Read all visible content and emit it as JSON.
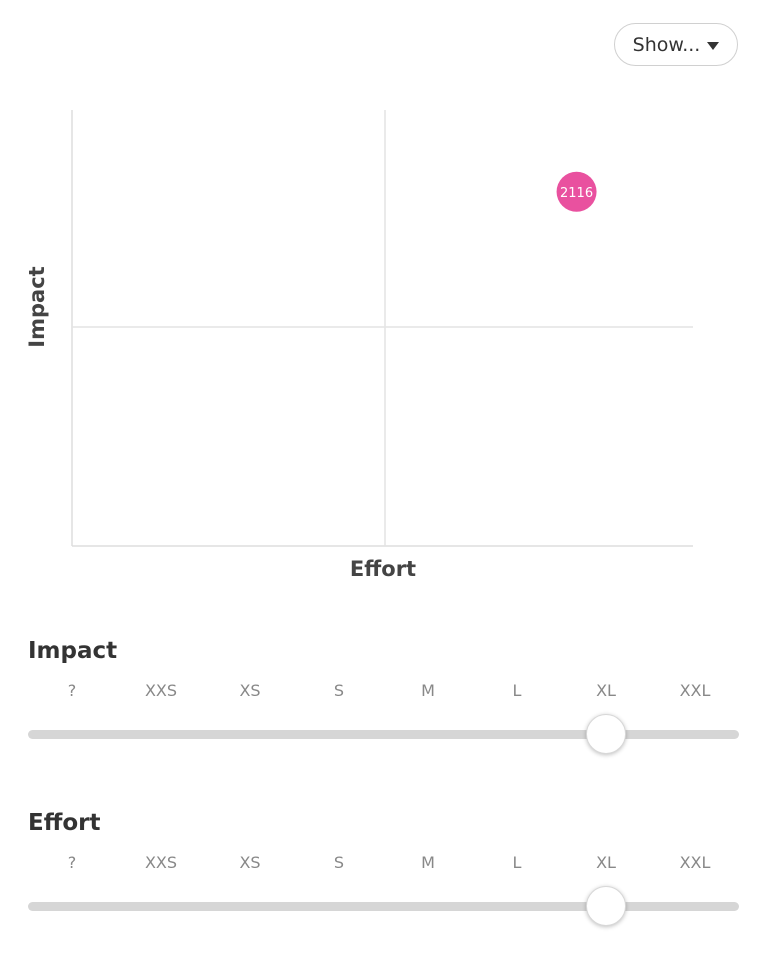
{
  "toolbar": {
    "show_label": "Show..."
  },
  "chart_data": {
    "type": "scatter",
    "xlabel": "Effort",
    "ylabel": "Impact",
    "categories": [
      "?",
      "XXS",
      "XS",
      "S",
      "M",
      "L",
      "XL",
      "XXL"
    ],
    "quadrants": true,
    "points": [
      {
        "label": "2116",
        "impact": "XL",
        "effort": "XL",
        "color": "#e9519f"
      }
    ]
  },
  "sliders": [
    {
      "title": "Impact",
      "ticks": [
        "?",
        "XXS",
        "XS",
        "S",
        "M",
        "L",
        "XL",
        "XXL"
      ],
      "value": "XL"
    },
    {
      "title": "Effort",
      "ticks": [
        "?",
        "XXS",
        "XS",
        "S",
        "M",
        "L",
        "XL",
        "XXL"
      ],
      "value": "XL"
    }
  ]
}
